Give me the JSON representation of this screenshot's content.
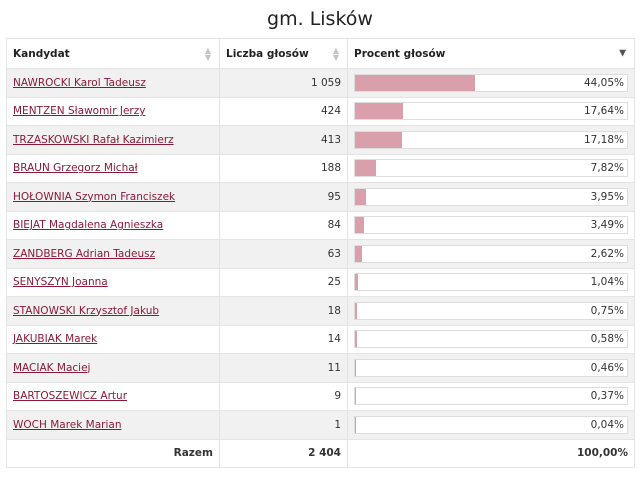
{
  "title": "gm. Lisków",
  "columns": {
    "candidate": "Kandydat",
    "votes": "Liczba głosów",
    "percent": "Procent głosów"
  },
  "colors": {
    "bar": "#d9a0ab",
    "link": "#8b1a3a"
  },
  "rows": [
    {
      "name": "NAWROCKI Karol Tadeusz",
      "votes": "1 059",
      "percent": "44,05%",
      "pct_value": 44.05
    },
    {
      "name": "MENTZEN Sławomir Jerzy",
      "votes": "424",
      "percent": "17,64%",
      "pct_value": 17.64
    },
    {
      "name": "TRZASKOWSKI Rafał Kazimierz",
      "votes": "413",
      "percent": "17,18%",
      "pct_value": 17.18
    },
    {
      "name": "BRAUN Grzegorz Michał",
      "votes": "188",
      "percent": "7,82%",
      "pct_value": 7.82
    },
    {
      "name": "HOŁOWNIA Szymon Franciszek",
      "votes": "95",
      "percent": "3,95%",
      "pct_value": 3.95
    },
    {
      "name": "BIEJAT Magdalena Agnieszka",
      "votes": "84",
      "percent": "3,49%",
      "pct_value": 3.49
    },
    {
      "name": "ZANDBERG Adrian Tadeusz",
      "votes": "63",
      "percent": "2,62%",
      "pct_value": 2.62
    },
    {
      "name": "SENYSZYN Joanna",
      "votes": "25",
      "percent": "1,04%",
      "pct_value": 1.04
    },
    {
      "name": "STANOWSKI Krzysztof Jakub",
      "votes": "18",
      "percent": "0,75%",
      "pct_value": 0.75
    },
    {
      "name": "JAKUBIAK Marek",
      "votes": "14",
      "percent": "0,58%",
      "pct_value": 0.58
    },
    {
      "name": "MACIAK Maciej",
      "votes": "11",
      "percent": "0,46%",
      "pct_value": 0.46
    },
    {
      "name": "BARTOSZEWICZ Artur",
      "votes": "9",
      "percent": "0,37%",
      "pct_value": 0.37
    },
    {
      "name": "WOCH Marek Marian",
      "votes": "1",
      "percent": "0,04%",
      "pct_value": 0.04
    }
  ],
  "footer": {
    "label": "Razem",
    "votes": "2 404",
    "percent": "100,00%"
  }
}
